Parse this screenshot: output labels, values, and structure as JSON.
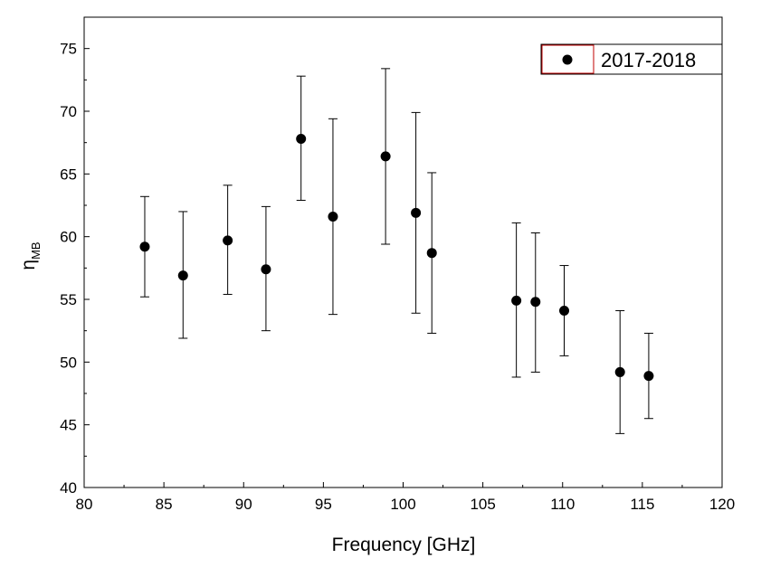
{
  "chart_data": {
    "type": "scatter",
    "xlabel": "Frequency [GHz]",
    "ylabel_main": "η",
    "ylabel_sub": "MB",
    "xlim": [
      80,
      120
    ],
    "ylim": [
      40,
      77.5
    ],
    "xticks": [
      80,
      85,
      90,
      95,
      100,
      105,
      110,
      115,
      120
    ],
    "yticks": [
      40,
      45,
      50,
      55,
      60,
      65,
      70,
      75
    ],
    "grid": false,
    "legend_position": "top-right",
    "series": [
      {
        "name": "2017-2018",
        "marker": "circle",
        "color": "#000000",
        "points": [
          {
            "x": 83.8,
            "y": 59.2,
            "err_low": 55.2,
            "err_high": 63.2
          },
          {
            "x": 86.2,
            "y": 56.9,
            "err_low": 51.9,
            "err_high": 62.0
          },
          {
            "x": 89.0,
            "y": 59.7,
            "err_low": 55.4,
            "err_high": 64.1
          },
          {
            "x": 91.4,
            "y": 57.4,
            "err_low": 52.5,
            "err_high": 62.4
          },
          {
            "x": 93.6,
            "y": 67.8,
            "err_low": 62.9,
            "err_high": 72.8
          },
          {
            "x": 95.6,
            "y": 61.6,
            "err_low": 53.8,
            "err_high": 69.4
          },
          {
            "x": 98.9,
            "y": 66.4,
            "err_low": 59.4,
            "err_high": 73.4
          },
          {
            "x": 100.8,
            "y": 61.9,
            "err_low": 53.9,
            "err_high": 69.9
          },
          {
            "x": 101.8,
            "y": 58.7,
            "err_low": 52.3,
            "err_high": 65.1
          },
          {
            "x": 107.1,
            "y": 54.9,
            "err_low": 48.8,
            "err_high": 61.1
          },
          {
            "x": 108.3,
            "y": 54.8,
            "err_low": 49.2,
            "err_high": 60.3
          },
          {
            "x": 110.1,
            "y": 54.1,
            "err_low": 50.5,
            "err_high": 57.7
          },
          {
            "x": 113.6,
            "y": 49.2,
            "err_low": 44.3,
            "err_high": 54.1
          },
          {
            "x": 115.4,
            "y": 48.9,
            "err_low": 45.5,
            "err_high": 52.3
          }
        ]
      }
    ]
  }
}
